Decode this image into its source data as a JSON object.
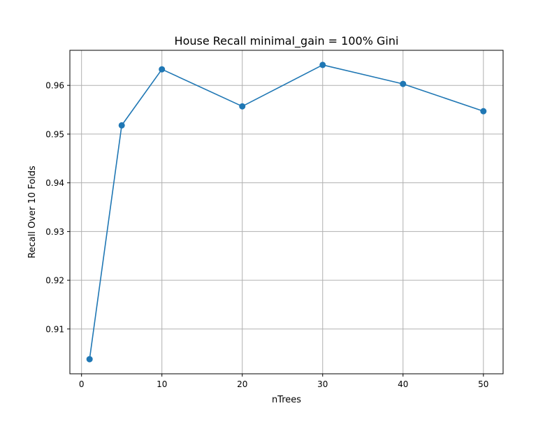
{
  "chart_data": {
    "type": "line",
    "title": "House Recall minimal_gain = 100% Gini",
    "xlabel": "nTrees",
    "ylabel": "Recall Over 10 Folds",
    "x": [
      1,
      5,
      10,
      20,
      30,
      40,
      50
    ],
    "series": [
      {
        "values": [
          0.9038,
          0.9518,
          0.9633,
          0.9557,
          0.9642,
          0.9603,
          0.9547
        ],
        "color": "#1f77b4",
        "marker": "circle"
      }
    ],
    "xlim": [
      -1.45,
      52.45
    ],
    "ylim": [
      0.9008,
      0.9672
    ],
    "xticks": [
      0,
      10,
      20,
      30,
      40,
      50
    ],
    "yticks": [
      0.91,
      0.92,
      0.93,
      0.94,
      0.95,
      0.96
    ],
    "xtick_labels": [
      "0",
      "10",
      "20",
      "30",
      "40",
      "50"
    ],
    "ytick_labels": [
      "0.91",
      "0.92",
      "0.93",
      "0.94",
      "0.95",
      "0.96"
    ],
    "grid": true,
    "legend": "none",
    "colors": {
      "line": "#1f77b4",
      "grid": "#b0b0b0",
      "axes": "#000000",
      "background": "#ffffff"
    }
  }
}
